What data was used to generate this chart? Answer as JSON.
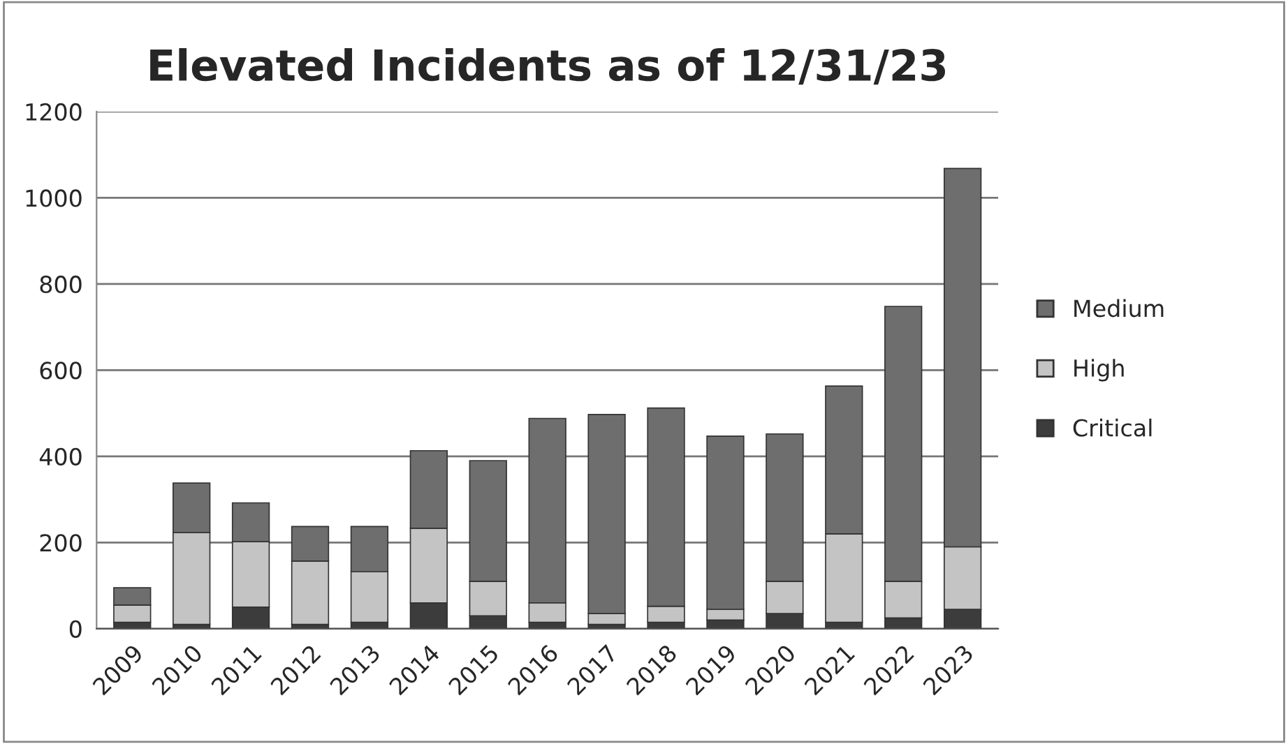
{
  "chart_data": {
    "type": "bar",
    "title": "Elevated Incidents as of 12/31/23",
    "categories": [
      "2009",
      "2010",
      "2011",
      "2012",
      "2013",
      "2014",
      "2015",
      "2016",
      "2017",
      "2018",
      "2019",
      "2020",
      "2021",
      "2022",
      "2023"
    ],
    "stacked": true,
    "series": [
      {
        "name": "Critical",
        "color": "#3c3c3c",
        "values": [
          15,
          10,
          50,
          10,
          15,
          60,
          30,
          15,
          10,
          15,
          20,
          35,
          15,
          25,
          45
        ]
      },
      {
        "name": "High",
        "color": "#c4c4c4",
        "values": [
          40,
          213,
          152,
          147,
          117,
          173,
          80,
          45,
          25,
          37,
          25,
          75,
          205,
          85,
          145
        ]
      },
      {
        "name": "Medium",
        "color": "#6e6e6e",
        "values": [
          40,
          115,
          90,
          80,
          105,
          180,
          280,
          428,
          462,
          460,
          402,
          342,
          343,
          638,
          878
        ]
      }
    ],
    "ylim": [
      0,
      1200
    ],
    "yticks": [
      0,
      200,
      400,
      600,
      800,
      1000,
      1200
    ],
    "grid": "y",
    "legend": "right"
  }
}
